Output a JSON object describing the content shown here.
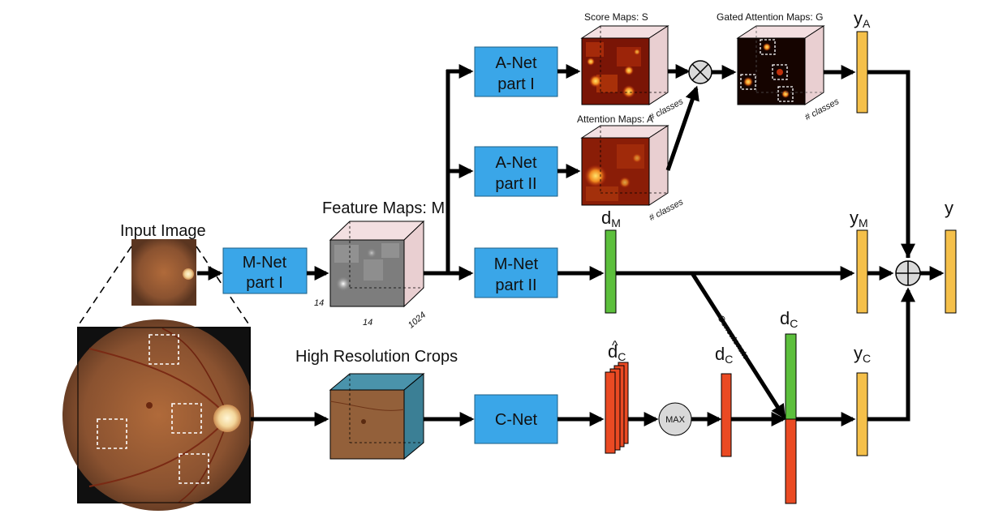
{
  "labels": {
    "input_image": "Input Image",
    "feature_maps": "Feature Maps: M",
    "high_res_crops": "High Resolution Crops",
    "score_maps": "Score Maps: S",
    "attention_maps": "Attention Maps: A",
    "gated_attention_maps": "Gated Attention Maps: G",
    "concatenate": "Concatenate",
    "max": "MAX",
    "dim_14_a": "14",
    "dim_14_b": "14",
    "dim_1024": "1024",
    "classes_score": "# classes",
    "classes_attention": "# classes",
    "classes_gated": "# classes",
    "y": "y"
  },
  "vectors": {
    "yA": {
      "base": "y",
      "sub": "A"
    },
    "yM": {
      "base": "y",
      "sub": "M"
    },
    "yC": {
      "base": "y",
      "sub": "C"
    },
    "dM": {
      "base": "d",
      "sub": "M"
    },
    "dC_hat": {
      "base": "d",
      "sub": "C",
      "accent": "^"
    },
    "dC_max": {
      "base": "d",
      "sub": "C"
    },
    "dC_concat": {
      "base": "d",
      "sub": "C"
    }
  },
  "boxes": {
    "mnet1": [
      "M-Net",
      "part I"
    ],
    "mnet2": [
      "M-Net",
      "part II"
    ],
    "anet1": [
      "A-Net",
      "part I"
    ],
    "anet2": [
      "A-Net",
      "part II"
    ],
    "cnet": [
      "C-Net"
    ]
  },
  "colors": {
    "net_box": "#3aa6e8",
    "vector_yellow": "#f5c04a",
    "vector_green": "#5cbf3c",
    "vector_red": "#ea4a23",
    "crop_cube_side": "#3b7f95",
    "feature_cube_side": "#e9cfd1"
  }
}
